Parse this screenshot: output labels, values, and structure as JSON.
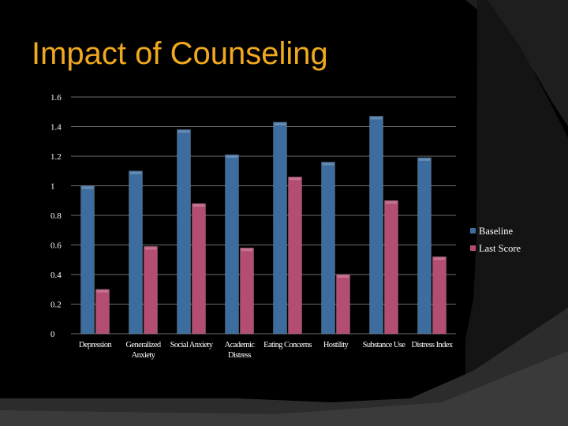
{
  "slide": {
    "title": "Impact of Counseling"
  },
  "colors": {
    "background": "#000000",
    "title": "#f0a81e",
    "baseline": "#3d6c9e",
    "last_score": "#b44d74",
    "gridline": "#6e6e6e",
    "decor_dark": "#202020",
    "decor_mid": "#333333"
  },
  "chart_data": {
    "type": "bar",
    "title": "",
    "xlabel": "",
    "ylabel": "",
    "ylim": [
      0,
      1.6
    ],
    "yticks": [
      "0",
      "0.2",
      "0.4",
      "0.6",
      "0.8",
      "1",
      "1.2",
      "1.4",
      "1.6"
    ],
    "grid": true,
    "legend_position": "right",
    "categories": [
      [
        "Depression"
      ],
      [
        "Generalized",
        "Anxiety"
      ],
      [
        "Social Anxiety"
      ],
      [
        "Academic",
        "Distress"
      ],
      [
        "Eating Concerns"
      ],
      [
        "Hostility"
      ],
      [
        "Substance Use"
      ],
      [
        "Distress Index"
      ]
    ],
    "series": [
      {
        "name": "Baseline",
        "color": "#3d6c9e",
        "values": [
          1.0,
          1.1,
          1.38,
          1.21,
          1.43,
          1.16,
          1.47,
          1.19
        ]
      },
      {
        "name": "Last Score",
        "color": "#b44d74",
        "values": [
          0.3,
          0.59,
          0.88,
          0.58,
          1.06,
          0.4,
          0.9,
          0.52
        ]
      }
    ]
  }
}
